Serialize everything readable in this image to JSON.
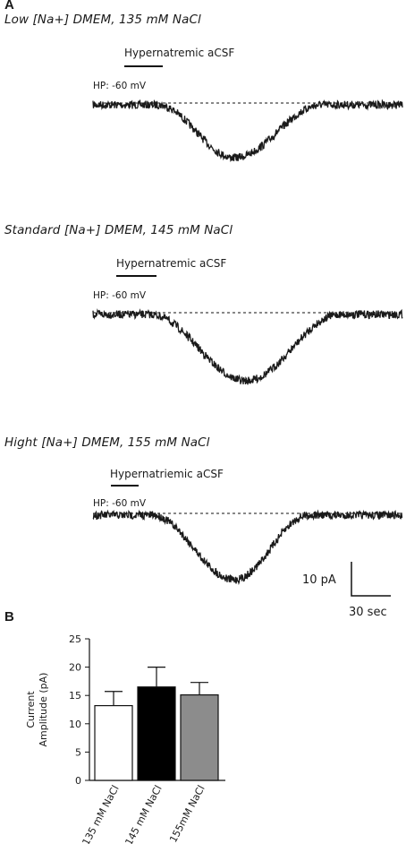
{
  "panel_a": {
    "letter": "A",
    "traces": [
      {
        "condition": "Low [Na+]  DMEM, 135 mM NaCl",
        "stimulus": "Hypernatremic aCSF",
        "holding": "HP: -60 mV",
        "amplitude_pA": 13
      },
      {
        "condition": "Standard [Na+]  DMEM, 145 mM NaCl",
        "stimulus": "Hypernatremic aCSF",
        "holding": "HP: -60 mV",
        "amplitude_pA": 16.5
      },
      {
        "condition": "Hight [Na+]  DMEM, 155 mM NaCl",
        "stimulus": "Hypernatriemic aCSF",
        "holding": "HP: -60 mV",
        "amplitude_pA": 15
      }
    ],
    "scale_bar": {
      "y": "10 pA",
      "x": "30 sec"
    }
  },
  "panel_b": {
    "letter": "B"
  },
  "chart_data": {
    "type": "bar",
    "categories": [
      "135 mM NaCl",
      "145 mM NaCl",
      "155mM NaCl"
    ],
    "values": [
      13.2,
      16.5,
      15.1
    ],
    "errors": [
      2.5,
      3.5,
      2.2
    ],
    "colors": [
      "#ffffff",
      "#000000",
      "#8c8c8c"
    ],
    "ylabel": "Current Amplitude (pA)",
    "ylim": [
      0,
      25
    ],
    "yticks": [
      0,
      5,
      10,
      15,
      20,
      25
    ],
    "grid": false
  }
}
